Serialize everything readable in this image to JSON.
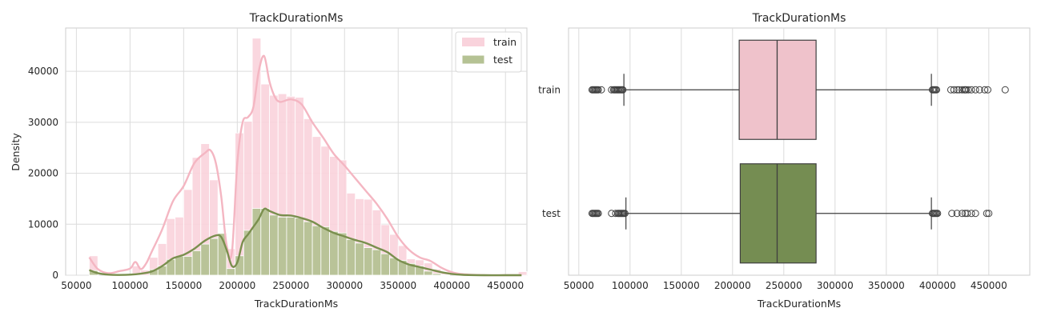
{
  "chart_data": [
    {
      "type": "histogram",
      "title": "TrackDurationMs",
      "xlabel": "TrackDurationMs",
      "ylabel": "Density",
      "xlim": [
        40000,
        470000
      ],
      "ylim": [
        0,
        48500
      ],
      "xticks": [
        "50000",
        "100000",
        "150000",
        "200000",
        "250000",
        "300000",
        "350000",
        "400000",
        "450000"
      ],
      "xtick_values": [
        50000,
        100000,
        150000,
        200000,
        250000,
        300000,
        350000,
        400000,
        450000
      ],
      "yticks": [
        "0",
        "10000",
        "20000",
        "30000",
        "40000"
      ],
      "ytick_values": [
        0,
        10000,
        20000,
        30000,
        40000
      ],
      "grid": true,
      "legend_position": "top-right",
      "bin_edges": [
        62000,
        70000,
        78000,
        86000,
        94000,
        102000,
        110000,
        118000,
        126000,
        134000,
        142000,
        150000,
        158000,
        166000,
        174000,
        182000,
        190000,
        198000,
        206000,
        214000,
        222000,
        230000,
        238000,
        246000,
        254000,
        262000,
        270000,
        278000,
        286000,
        294000,
        302000,
        310000,
        318000,
        326000,
        334000,
        342000,
        350000,
        358000,
        366000,
        374000,
        382000,
        390000,
        398000,
        406000,
        414000,
        422000,
        430000,
        438000,
        446000,
        454000,
        462000,
        470000
      ],
      "series": [
        {
          "name": "train",
          "color": "#f4b6c2",
          "bar_color": "#f9d3dc",
          "values": [
            3800,
            0,
            0,
            0,
            0,
            1800,
            1000,
            3500,
            6200,
            11100,
            11400,
            16800,
            23100,
            25800,
            18700,
            7800,
            5200,
            27900,
            30200,
            46500,
            37500,
            35300,
            35600,
            35100,
            34900,
            30700,
            27200,
            25300,
            23300,
            22600,
            16100,
            15000,
            14900,
            12800,
            9900,
            8000,
            5800,
            3200,
            3000,
            2400,
            1200,
            700,
            0,
            0,
            0,
            0,
            0,
            0,
            0,
            0,
            700
          ],
          "kde_x": [
            62000,
            70000,
            80000,
            90000,
            100000,
            105000,
            110000,
            115000,
            120000,
            130000,
            140000,
            150000,
            160000,
            170000,
            175000,
            180000,
            185000,
            190000,
            195000,
            200000,
            205000,
            210000,
            215000,
            220000,
            225000,
            230000,
            235000,
            240000,
            250000,
            260000,
            270000,
            280000,
            290000,
            300000,
            310000,
            320000,
            330000,
            340000,
            350000,
            360000,
            370000,
            380000,
            390000,
            400000,
            410000,
            430000,
            450000,
            465000
          ],
          "kde_y": [
            3500,
            1200,
            400,
            800,
            1300,
            2600,
            1200,
            2300,
            4500,
            9000,
            14500,
            17500,
            22000,
            24000,
            24500,
            22000,
            15500,
            6000,
            4500,
            22000,
            30000,
            31000,
            33000,
            40000,
            43000,
            38000,
            35000,
            34000,
            34500,
            33500,
            30000,
            27000,
            23800,
            21500,
            19000,
            16500,
            14000,
            11000,
            7500,
            5000,
            3500,
            2800,
            1500,
            600,
            200,
            0,
            0,
            0
          ]
        },
        {
          "name": "test",
          "color": "#7a8f4e",
          "bar_color": "#b5c294",
          "values": [
            900,
            0,
            0,
            0,
            0,
            300,
            0,
            1100,
            1800,
            3100,
            3700,
            3700,
            4800,
            6100,
            7200,
            8200,
            1300,
            3800,
            8800,
            13100,
            13100,
            11800,
            11400,
            11400,
            11200,
            10500,
            9700,
            9500,
            8600,
            8300,
            7000,
            6300,
            5400,
            5000,
            4200,
            3400,
            2900,
            2300,
            1800,
            800,
            300,
            100,
            0,
            0,
            0,
            0,
            0,
            0,
            0,
            0,
            0
          ],
          "kde_x": [
            62000,
            70000,
            80000,
            90000,
            100000,
            110000,
            120000,
            130000,
            140000,
            150000,
            160000,
            170000,
            180000,
            185000,
            190000,
            195000,
            200000,
            205000,
            210000,
            215000,
            220000,
            225000,
            230000,
            240000,
            250000,
            260000,
            270000,
            280000,
            290000,
            300000,
            310000,
            320000,
            330000,
            340000,
            350000,
            360000,
            370000,
            380000,
            390000,
            400000,
            410000,
            430000,
            450000,
            465000
          ],
          "kde_y": [
            1000,
            400,
            100,
            50,
            100,
            300,
            700,
            1800,
            3300,
            4000,
            5200,
            6800,
            7800,
            7500,
            5000,
            1800,
            2500,
            6500,
            8000,
            9500,
            11000,
            13000,
            12600,
            11800,
            11700,
            11200,
            10500,
            9300,
            8300,
            7600,
            6900,
            6300,
            5400,
            4500,
            3000,
            2100,
            1600,
            1100,
            600,
            250,
            80,
            0,
            0,
            0
          ]
        }
      ]
    },
    {
      "type": "boxplot",
      "title": "TrackDurationMs",
      "xlabel": "TrackDurationMs",
      "ylabel": "",
      "xlim": [
        40000,
        490000
      ],
      "xticks": [
        "50000",
        "100000",
        "150000",
        "200000",
        "250000",
        "300000",
        "350000",
        "400000",
        "450000"
      ],
      "xtick_values": [
        50000,
        100000,
        150000,
        200000,
        250000,
        300000,
        350000,
        400000,
        450000
      ],
      "grid": true,
      "categories": [
        "train",
        "test"
      ],
      "boxes": [
        {
          "category": "train",
          "color": "#efc2cb",
          "whisker_low": 94000,
          "q1": 206500,
          "median": 243500,
          "q3": 281500,
          "whisker_high": 394000,
          "outliers": [
            63000,
            64000,
            65000,
            66000,
            67000,
            68000,
            69000,
            72000,
            82000,
            84000,
            85000,
            86000,
            87000,
            88000,
            89000,
            90000,
            91000,
            92000,
            93000,
            395000,
            396000,
            397000,
            398000,
            399000,
            413000,
            416000,
            419000,
            421000,
            424000,
            426000,
            427000,
            428000,
            430000,
            433000,
            437000,
            441000,
            446000,
            449000,
            466000
          ]
        },
        {
          "category": "test",
          "color": "#758d52",
          "whisker_low": 96000,
          "q1": 207500,
          "median": 243500,
          "q3": 281500,
          "whisker_high": 394000,
          "outliers": [
            63000,
            64000,
            65000,
            66000,
            67000,
            68000,
            69000,
            82000,
            86000,
            88000,
            89000,
            90000,
            91000,
            92000,
            93000,
            94000,
            95000,
            395000,
            396000,
            397000,
            398000,
            399000,
            400000,
            414000,
            419000,
            424000,
            427000,
            429000,
            433000,
            437000,
            448000,
            450000
          ]
        }
      ]
    }
  ]
}
